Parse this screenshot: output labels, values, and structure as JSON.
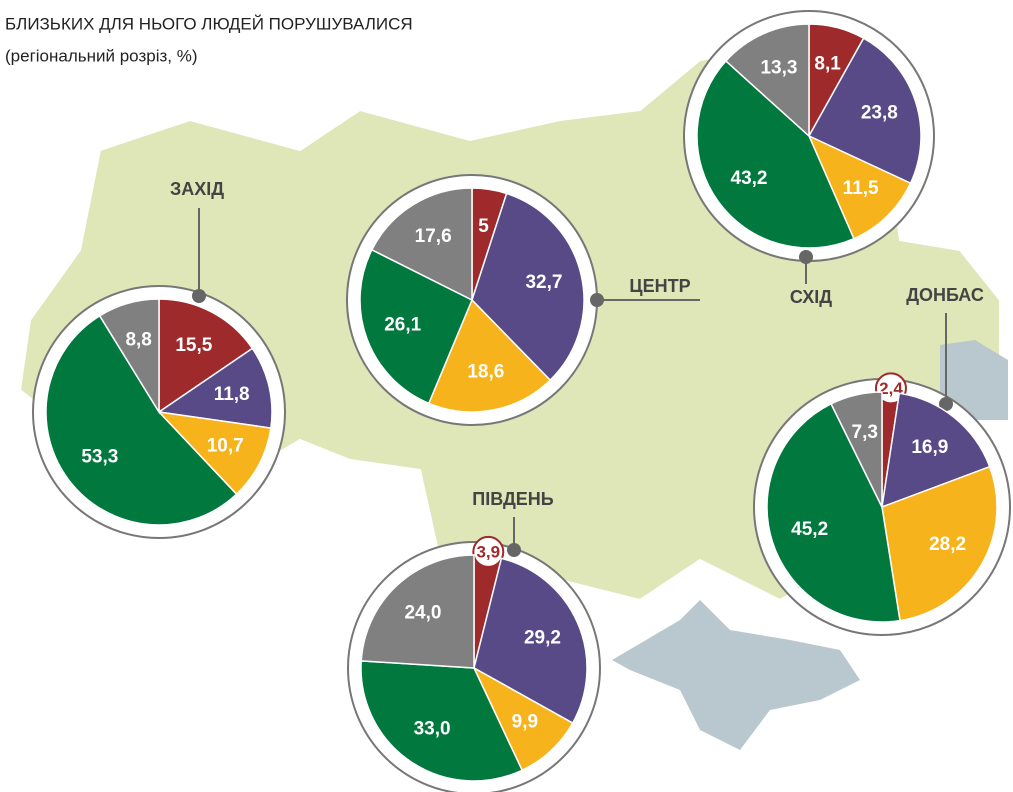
{
  "title": [
    "БЛИЗЬКИХ ДЛЯ НЬОГО ЛЮДЕЙ ПОРУШУВАЛИСЯ",
    "(регіональний розріз, %)"
  ],
  "chart_data": [
    {
      "type": "pie",
      "title": "ЗАХІД",
      "values": [
        15.5,
        11.8,
        10.7,
        53.3,
        8.8
      ],
      "value_labels": [
        "15,5",
        "11,8",
        "10,7",
        "53,3",
        "8,8"
      ],
      "colors": [
        "#9e2a2b",
        "#574a87",
        "#f7b31b",
        "#00783e",
        "#808080"
      ]
    },
    {
      "type": "pie",
      "title": "ЦЕНТР",
      "values": [
        5,
        32.7,
        18.6,
        26.1,
        17.6
      ],
      "value_labels": [
        "5",
        "32,7",
        "18,6",
        "26,1",
        "17,6"
      ],
      "colors": [
        "#9e2a2b",
        "#574a87",
        "#f7b31b",
        "#00783e",
        "#808080"
      ]
    },
    {
      "type": "pie",
      "title": "СХІД",
      "values": [
        8.1,
        23.8,
        11.5,
        43.2,
        13.3
      ],
      "value_labels": [
        "8,1",
        "23,8",
        "11,5",
        "43,2",
        "13,3"
      ],
      "colors": [
        "#9e2a2b",
        "#574a87",
        "#f7b31b",
        "#00783e",
        "#808080"
      ]
    },
    {
      "type": "pie",
      "title": "ДОНБАС",
      "values": [
        2.4,
        16.9,
        28.2,
        45.2,
        7.3
      ],
      "value_labels": [
        "2,4",
        "16,9",
        "28,2",
        "45,2",
        "7,3"
      ],
      "colors": [
        "#9e2a2b",
        "#574a87",
        "#f7b31b",
        "#00783e",
        "#808080"
      ]
    },
    {
      "type": "pie",
      "title": "ПІВДЕНЬ",
      "values": [
        3.9,
        29.2,
        9.9,
        33.0,
        24.0
      ],
      "value_labels": [
        "3,9",
        "29,2",
        "9,9",
        "33,0",
        "24,0"
      ],
      "colors": [
        "#9e2a2b",
        "#574a87",
        "#f7b31b",
        "#00783e",
        "#808080"
      ]
    }
  ]
}
